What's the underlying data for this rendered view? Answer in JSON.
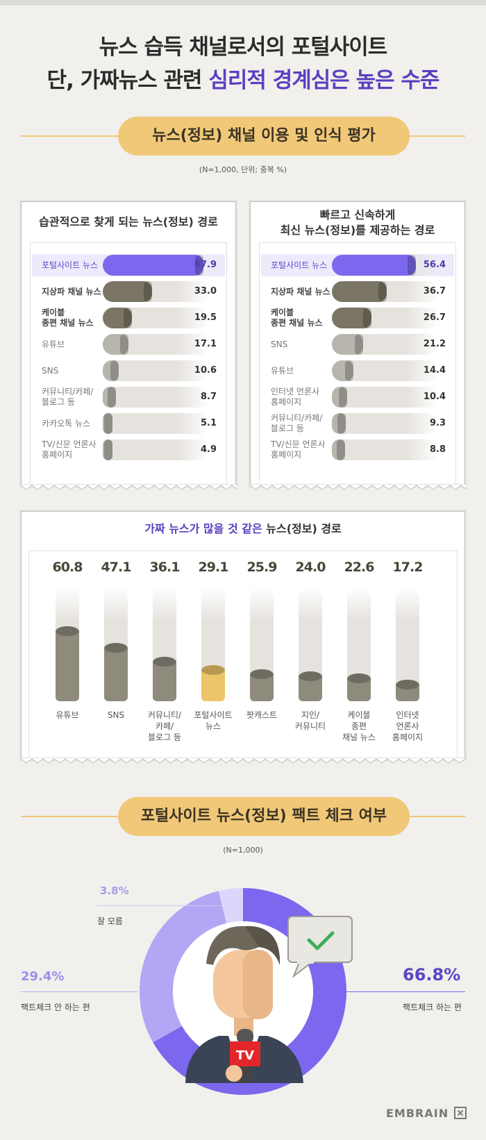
{
  "headline": {
    "line1": "뉴스 습득 채널로서의 포털사이트",
    "line2_prefix": "단, 가짜뉴스 관련 ",
    "line2_highlight": "심리적 경계심은 높은 수준"
  },
  "section1": {
    "title": "뉴스(정보) 채널 이용 및 인식 평가",
    "note": "(N=1,000, 단위; 중복 %)"
  },
  "colors": {
    "accent": "#7b68ee",
    "dark_bar": "#7a7565",
    "mid_bar": "#8e8a7c",
    "light_bar": "#b8b5ad",
    "track": "#e6e3de",
    "highlight_bar": "#ecc46a",
    "pill": "#f1c878"
  },
  "chart_data": [
    {
      "type": "bar",
      "title": "습관적으로 찾게 되는 뉴스(정보) 경로",
      "categories": [
        "포털사이트 뉴스",
        "지상파 채널 뉴스",
        "케이블\n종편 채널 뉴스",
        "유튜브",
        "SNS",
        "커뮤니티/카페/\n블로그 등",
        "카카오톡 뉴스",
        "TV/신문 언론사\n홈페이지"
      ],
      "values": [
        67.9,
        33.0,
        19.5,
        17.1,
        10.6,
        8.7,
        5.1,
        4.9
      ],
      "value_labels": [
        "67.9",
        "33.0",
        "19.5",
        "17.1",
        "10.6",
        "8.7",
        "5.1",
        "4.9"
      ],
      "orientation": "horizontal",
      "xlim": [
        0,
        100
      ]
    },
    {
      "type": "bar",
      "title_line1": "빠르고 신속하게",
      "title_line2": "최신 뉴스(정보)를 제공하는 경로",
      "categories": [
        "포털사이트 뉴스",
        "지상파 채널 뉴스",
        "케이블\n종편 채널 뉴스",
        "SNS",
        "유튜브",
        "인터넷 언론사\n홈페이지",
        "커뮤니티/카페/\n블로그 등",
        "TV/신문 언론사\n홈페이지"
      ],
      "values": [
        56.4,
        36.7,
        26.7,
        21.2,
        14.4,
        10.4,
        9.3,
        8.8
      ],
      "value_labels": [
        "56.4",
        "36.7",
        "26.7",
        "21.2",
        "14.4",
        "10.4",
        "9.3",
        "8.8"
      ],
      "orientation": "horizontal",
      "xlim": [
        0,
        100
      ]
    },
    {
      "type": "bar",
      "title_highlight": "가짜 뉴스가 많을 것 같은",
      "title_rest": " 뉴스(정보) 경로",
      "categories": [
        "유튜브",
        "SNS",
        "커뮤니티/\n카페/\n블로그 등",
        "포털사이트\n뉴스",
        "팟캐스트",
        "지인/\n커뮤니티",
        "케이블\n종편\n채널 뉴스",
        "인터넷\n언론사\n홈페이지"
      ],
      "values": [
        60.8,
        47.1,
        36.1,
        29.1,
        25.9,
        24.0,
        22.6,
        17.2
      ],
      "value_labels": [
        "60.8",
        "47.1",
        "36.1",
        "29.1",
        "25.9",
        "24.0",
        "22.6",
        "17.2"
      ],
      "orientation": "vertical",
      "ylim": [
        0,
        100
      ]
    },
    {
      "type": "pie",
      "title": "포털사이트 뉴스(정보) 팩트 체크 여부",
      "note": "(N=1,000)",
      "labels": [
        "팩트체크 하는 편",
        "팩트체크 안 하는 편",
        "잘 모름"
      ],
      "values": [
        66.8,
        29.4,
        3.8
      ],
      "value_labels": [
        "66.8%",
        "29.4%",
        "3.8%"
      ]
    }
  ],
  "illustration": {
    "mic_badge": "TV",
    "speech_icon": "checkmark-icon"
  },
  "brand": "EMBRAIN"
}
